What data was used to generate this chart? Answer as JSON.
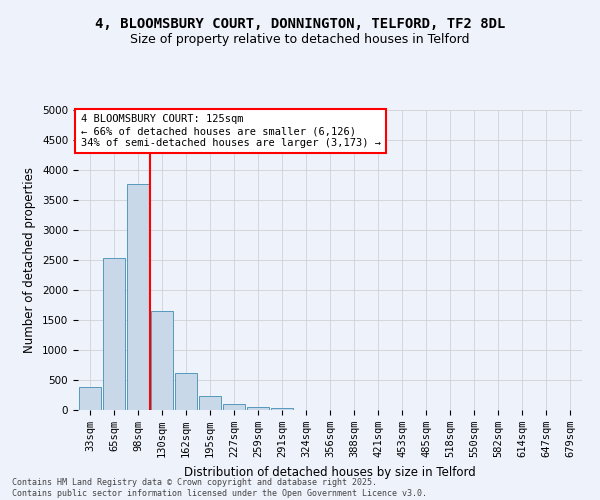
{
  "title_line1": "4, BLOOMSBURY COURT, DONNINGTON, TELFORD, TF2 8DL",
  "title_line2": "Size of property relative to detached houses in Telford",
  "xlabel": "Distribution of detached houses by size in Telford",
  "ylabel": "Number of detached properties",
  "categories": [
    "33sqm",
    "65sqm",
    "98sqm",
    "130sqm",
    "162sqm",
    "195sqm",
    "227sqm",
    "259sqm",
    "291sqm",
    "324sqm",
    "356sqm",
    "388sqm",
    "421sqm",
    "453sqm",
    "485sqm",
    "518sqm",
    "550sqm",
    "582sqm",
    "614sqm",
    "647sqm",
    "679sqm"
  ],
  "values": [
    390,
    2540,
    3760,
    1650,
    610,
    230,
    105,
    55,
    30,
    0,
    0,
    0,
    0,
    0,
    0,
    0,
    0,
    0,
    0,
    0,
    0
  ],
  "bar_color": "#c8d8e8",
  "bar_edge_color": "#5599bb",
  "grid_color": "#cccccc",
  "background_color": "#eef2fb",
  "vline_color": "#ff0000",
  "annotation_text": "4 BLOOMSBURY COURT: 125sqm\n← 66% of detached houses are smaller (6,126)\n34% of semi-detached houses are larger (3,173) →",
  "annotation_box_color": "#ffffff",
  "annotation_box_edge": "#ff0000",
  "ylim": [
    0,
    5000
  ],
  "yticks": [
    0,
    500,
    1000,
    1500,
    2000,
    2500,
    3000,
    3500,
    4000,
    4500,
    5000
  ],
  "footnote": "Contains HM Land Registry data © Crown copyright and database right 2025.\nContains public sector information licensed under the Open Government Licence v3.0.",
  "title_fontsize": 10,
  "subtitle_fontsize": 9,
  "axis_label_fontsize": 8.5,
  "tick_fontsize": 7.5,
  "annotation_fontsize": 7.5,
  "footnote_fontsize": 6
}
